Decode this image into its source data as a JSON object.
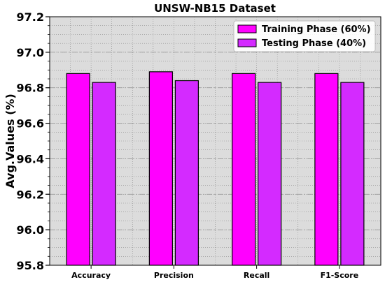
{
  "chart_data": {
    "type": "bar",
    "title": "UNSW-NB15 Dataset",
    "xlabel": "",
    "ylabel": "Avg.Values (%)",
    "ylim": [
      95.8,
      97.2
    ],
    "yticks": [
      "95.8",
      "96.0",
      "96.2",
      "96.4",
      "96.6",
      "96.8",
      "97.0",
      "97.2"
    ],
    "categories": [
      "Accuracy",
      "Precision",
      "Recall",
      "F1-Score"
    ],
    "series": [
      {
        "name": "Training Phase (60%)",
        "values": [
          96.88,
          96.89,
          96.88,
          96.88
        ],
        "color": "#ff00ff"
      },
      {
        "name": "Testing Phase (40%)",
        "values": [
          96.83,
          96.84,
          96.83,
          96.83
        ],
        "color": "#d42aff"
      }
    ],
    "grid": true,
    "legend_position": "top-right",
    "background_color": "#dcdcdc"
  }
}
